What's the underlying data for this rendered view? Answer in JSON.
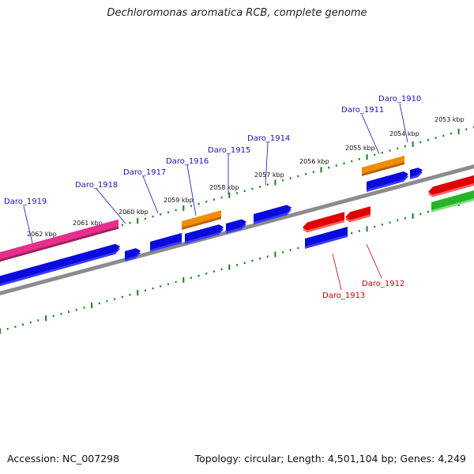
{
  "title": "Dechloromonas aromatica RCB, complete genome",
  "footer": {
    "accession": "Accession: NC_007298",
    "summary": "Topology: circular; Length: 4,501,104 bp; Genes: 4,249"
  },
  "colors": {
    "backbone": "#8c8c8c",
    "ruler": "#1e7d1e",
    "label_forward": "#1414b4",
    "label_reverse": "#c80000",
    "gene_blue": "#0a0adc",
    "gene_orange": "#f28c00",
    "gene_pink": "#e6308c",
    "gene_red": "#e00000",
    "gene_green": "#28b428"
  },
  "ruler_labels": [
    "2062 kbp",
    "2061 kbp",
    "2060 kbp",
    "2059 kbp",
    "2058 kbp",
    "2057 kbp",
    "2056 kbp",
    "2055 kbp",
    "2054 kbp",
    "2053 kbp"
  ],
  "gene_labels_forward": [
    "Daro_1919",
    "Daro_1918",
    "Daro_1917",
    "Daro_1916",
    "Daro_1915",
    "Daro_1914",
    "Daro_1911",
    "Daro_1910"
  ],
  "gene_labels_reverse": [
    "Daro_1913",
    "Daro_1912"
  ]
}
